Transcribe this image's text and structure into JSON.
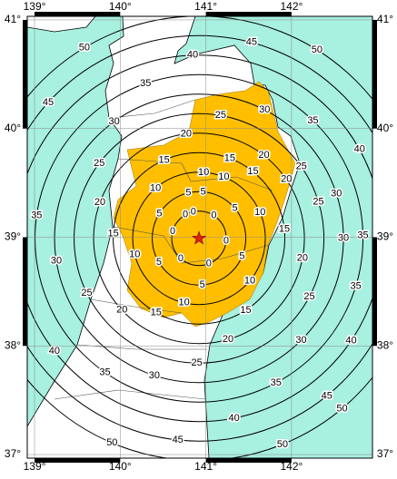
{
  "map": {
    "lonlim": [
      138.915,
      142.945
    ],
    "latlim": [
      36.967,
      41.033
    ],
    "lon_ticks": [
      {
        "value": 139,
        "label": "139°"
      },
      {
        "value": 140,
        "label": "140°"
      },
      {
        "value": 141,
        "label": "141°"
      },
      {
        "value": 142,
        "label": "142°"
      }
    ],
    "lat_ticks": [
      {
        "value": 37,
        "label": "37°"
      },
      {
        "value": 38,
        "label": "38°"
      },
      {
        "value": 39,
        "label": "39°"
      },
      {
        "value": 40,
        "label": "40°"
      },
      {
        "value": 41,
        "label": "41°"
      }
    ],
    "contours": [
      0,
      5,
      10,
      15,
      20,
      25,
      30,
      35,
      40,
      45,
      50
    ],
    "epicenter": {
      "lon": 140.92,
      "lat": 38.99
    }
  }
}
